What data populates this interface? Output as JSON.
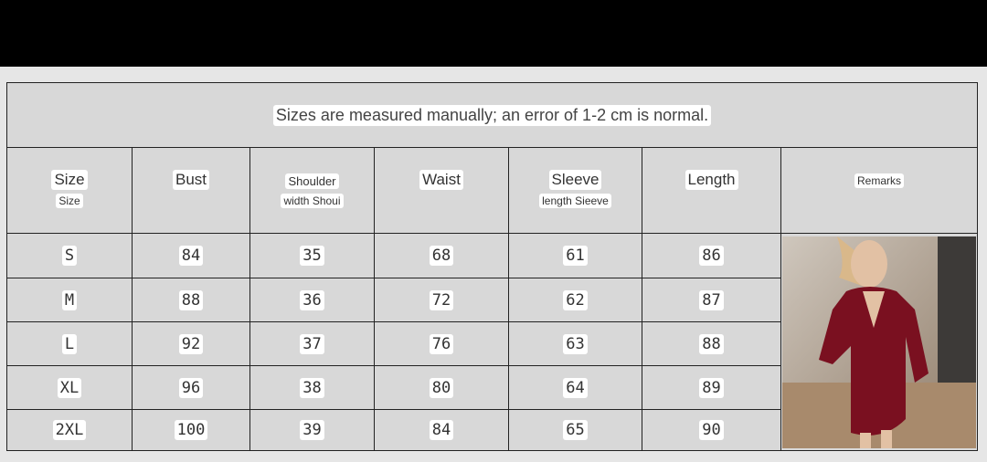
{
  "note": "Sizes are measured manually; an error of 1-2 cm is normal.",
  "headers": [
    {
      "main": "Size",
      "sub": "Size"
    },
    {
      "main": "Bust",
      "sub": ""
    },
    {
      "main": "Shoulder",
      "sub": "width Shoui"
    },
    {
      "main": "Waist",
      "sub": ""
    },
    {
      "main": "Sleeve",
      "sub": "length Sieeve"
    },
    {
      "main": "Length",
      "sub": ""
    },
    {
      "main": "Remarks",
      "sub": ""
    }
  ],
  "rows": [
    [
      "S",
      "84",
      "35",
      "68",
      "61",
      "86"
    ],
    [
      "M",
      "88",
      "36",
      "72",
      "62",
      "87"
    ],
    [
      "L",
      "92",
      "37",
      "76",
      "63",
      "88"
    ],
    [
      "XL",
      "96",
      "38",
      "80",
      "64",
      "89"
    ],
    [
      "2XL",
      "100",
      "39",
      "84",
      "65",
      "90"
    ]
  ],
  "colors": {
    "dress": "#7a1020",
    "cell": "#d8d8d8"
  },
  "remarks_image": "red-long-sleeve-dress-photo"
}
